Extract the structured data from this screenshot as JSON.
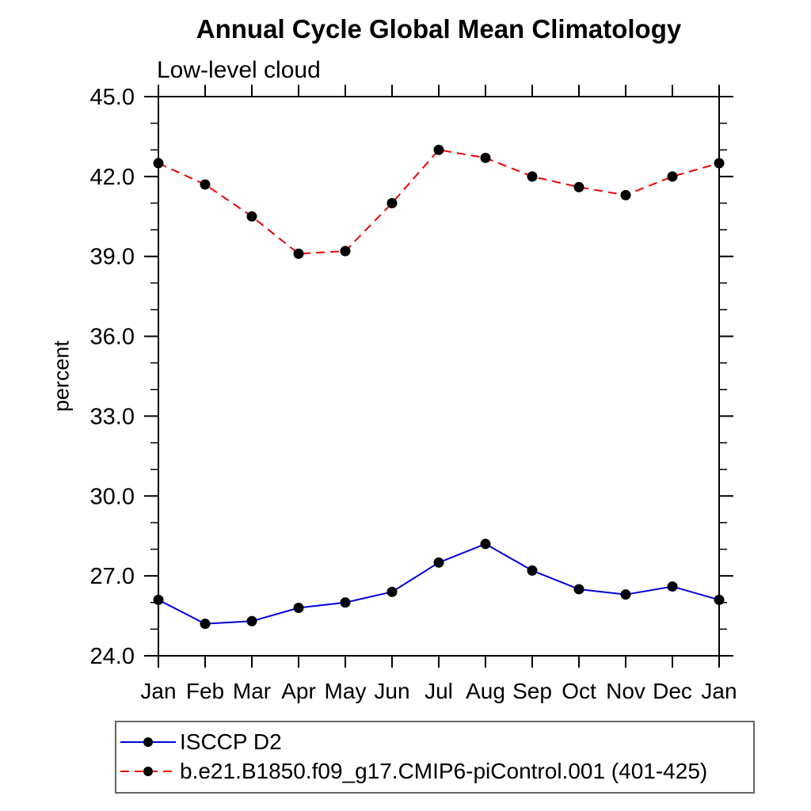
{
  "page": {
    "background_color": "#ffffff",
    "axis_color": "#000000",
    "legend_border_color": "#666666"
  },
  "chart_data": {
    "type": "line",
    "title": "Annual Cycle Global Mean Climatology",
    "subtitle": "Low-level cloud",
    "ylabel": "percent",
    "xlabel": "",
    "categories": [
      "Jan",
      "Feb",
      "Mar",
      "Apr",
      "May",
      "Jun",
      "Jul",
      "Aug",
      "Sep",
      "Oct",
      "Nov",
      "Dec",
      "Jan"
    ],
    "ylim": [
      24.0,
      45.0
    ],
    "ytick_major": [
      24.0,
      27.0,
      30.0,
      33.0,
      36.0,
      39.0,
      42.0,
      45.0
    ],
    "ytick_minor_step": 1.0,
    "ytick_decimals": 1,
    "grid": false,
    "legend_position": "bottom-left-box",
    "series": [
      {
        "name": "ISCCP D2",
        "color": "#0000dd",
        "style": "solid",
        "marker": "filled-circle",
        "marker_color": "#000000",
        "values": [
          26.1,
          25.2,
          25.3,
          25.8,
          26.0,
          26.4,
          27.5,
          28.2,
          27.2,
          26.5,
          26.3,
          26.6,
          26.1
        ]
      },
      {
        "name": "b.e21.B1850.f09_g17.CMIP6-piControl.001 (401-425)",
        "color": "#ee0000",
        "style": "dashed",
        "marker": "filled-circle",
        "marker_color": "#000000",
        "values": [
          42.5,
          41.7,
          40.5,
          39.1,
          39.2,
          41.0,
          43.0,
          42.7,
          42.0,
          41.6,
          41.3,
          42.0,
          42.5
        ]
      }
    ]
  }
}
